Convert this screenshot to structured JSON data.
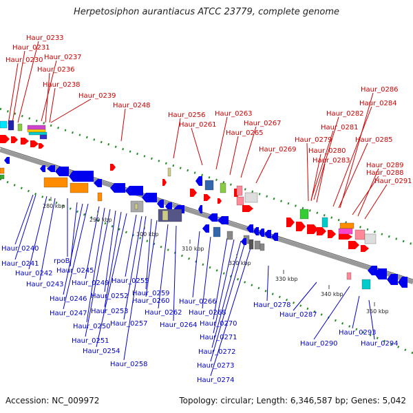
{
  "title": "Herpetosiphon aurantiacus ATCC 23779, complete genome",
  "footer": {
    "accession": "Accession: NC_009972",
    "topology": "Topology: circular; Length: 6,346,587 bp; Genes: 5,042"
  },
  "colors": {
    "top_label": "#cc0000",
    "bottom_label": "#0000cc",
    "forward_gene": "#ff0000",
    "reverse_gene": "#0000ee",
    "backbone": "#999999",
    "gc_dots": "#228b22"
  },
  "ticks": [
    "280 kbp",
    "290 kbp",
    "300 kbp",
    "310 kbp",
    "320 kbp",
    "330 kbp",
    "340 kbp",
    "350 kbp"
  ],
  "top_labels": [
    "Haur_0233",
    "Haur_0231",
    "Haur_0230",
    "Haur_0237",
    "Haur_0236",
    "Haur_0238",
    "Haur_0239",
    "Haur_0248",
    "Haur_0256",
    "Haur_0261",
    "Haur_0263",
    "Haur_0265",
    "Haur_0267",
    "Haur_0269",
    "Haur_0279",
    "Haur_0280",
    "Haur_0283",
    "Haur_0281",
    "Haur_0282",
    "Haur_0284",
    "Haur_0285",
    "Haur_0286",
    "Haur_0288",
    "Haur_0289",
    "Haur_0291"
  ],
  "bottom_labels": [
    "Haur_0240",
    "Haur_0241",
    "Haur_0242",
    "Haur_0243",
    "rpoB",
    "Haur_0245",
    "Haur_0246",
    "Haur_0247",
    "Haur_0249",
    "Haur_0250",
    "Haur_0251",
    "Haur_0252",
    "Haur_0253",
    "Haur_0254",
    "Haur_0255",
    "Haur_0257",
    "Haur_0258",
    "Haur_0259",
    "Haur_0260",
    "Haur_0262",
    "Haur_0264",
    "Haur_0266",
    "Haur_0268",
    "Haur_0270",
    "Haur_0271",
    "Haur_0272",
    "Haur_0273",
    "Haur_0274",
    "Haur_0278",
    "Haur_0287",
    "Haur_0290",
    "Haur_0293",
    "Haur_0294"
  ]
}
